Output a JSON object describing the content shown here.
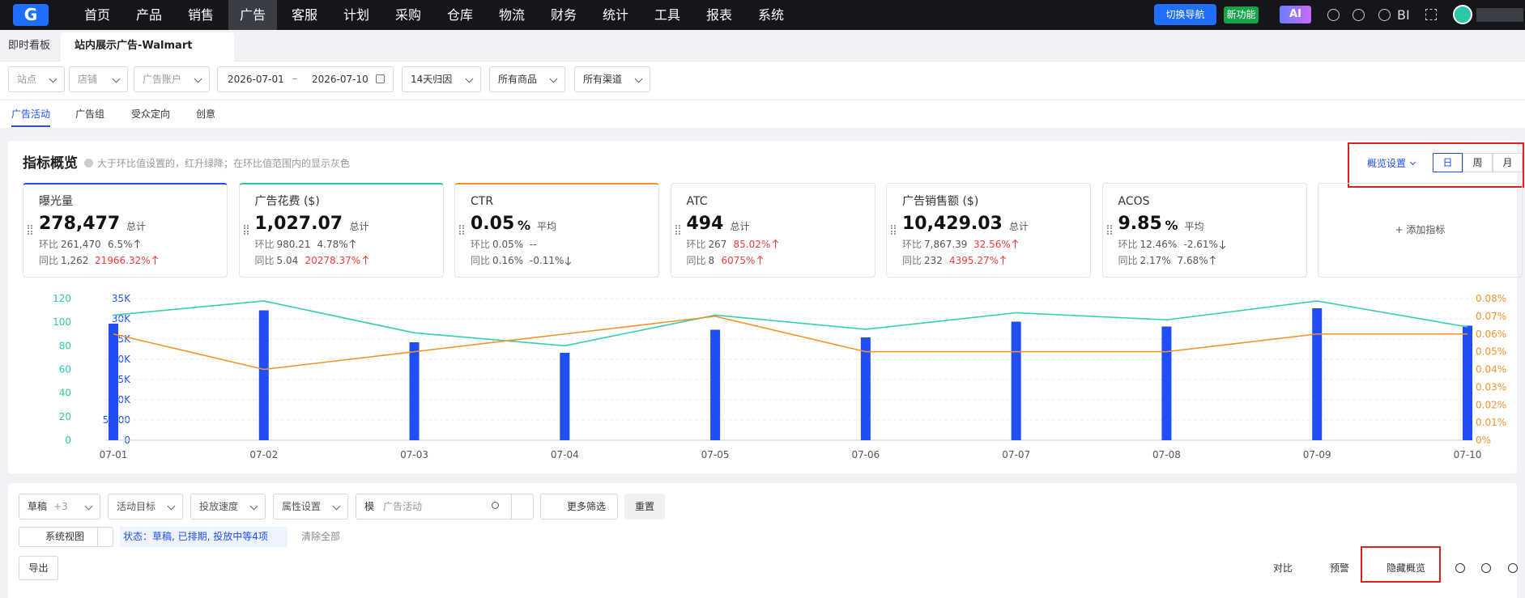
{
  "nav": {
    "items": [
      "首页",
      "产品",
      "销售",
      "广告",
      "客服",
      "计划",
      "采购",
      "仓库",
      "物流",
      "财务",
      "统计",
      "工具",
      "报表",
      "系统"
    ],
    "active": 3,
    "switch": "切换导航",
    "new_feature": "新功能",
    "ai": "AI",
    "bi": "BI"
  },
  "tabs": [
    "即时看板",
    "站内展示广告-Walmart"
  ],
  "filters": {
    "site": "站点",
    "shop": "店铺",
    "account": "广告账户",
    "start": "2026-07-01",
    "end": "2026-07-10",
    "attribution": "14天归因",
    "products": "所有商品",
    "channels": "所有渠道"
  },
  "subtabs": [
    "广告活动",
    "广告组",
    "受众定向",
    "创意"
  ],
  "overview": {
    "title": "指标概览",
    "hint": "大于环比值设置的，红升绿降；在环比值范围内的显示灰色",
    "settings": "概览设置",
    "periods": [
      "日",
      "周",
      "月"
    ],
    "add": "+ 添加指标",
    "metrics": [
      {
        "name": "曝光量",
        "value": "278,477",
        "agg": "总计",
        "accent": "#1f4ef5",
        "rows": [
          {
            "label": "环比",
            "value": "261,470",
            "change": "6.5%",
            "trend": "up",
            "alert": false
          },
          {
            "label": "同比",
            "value": "1,262",
            "change": "21966.32%",
            "trend": "up",
            "alert": true
          }
        ]
      },
      {
        "name": "广告花费 ($)",
        "value": "1,027.07",
        "agg": "总计",
        "accent": "#2ec7a6",
        "rows": [
          {
            "label": "环比",
            "value": "980.21",
            "change": "4.78%",
            "trend": "up",
            "alert": false
          },
          {
            "label": "同比",
            "value": "5.04",
            "change": "20278.37%",
            "trend": "up",
            "alert": true
          }
        ]
      },
      {
        "name": "CTR",
        "value": "0.05",
        "unit": "%",
        "agg": "平均",
        "accent": "#f5922a",
        "rows": [
          {
            "label": "环比",
            "value": "0.05%",
            "change": "--",
            "alert": false
          },
          {
            "label": "同比",
            "value": "0.16%",
            "change": "-0.11%",
            "trend": "down",
            "alert": false
          }
        ]
      },
      {
        "name": "ATC",
        "value": "494",
        "agg": "总计",
        "rows": [
          {
            "label": "环比",
            "value": "267",
            "change": "85.02%",
            "trend": "up",
            "alert": true
          },
          {
            "label": "同比",
            "value": "8",
            "change": "6075%",
            "trend": "up",
            "alert": true
          }
        ]
      },
      {
        "name": "广告销售额 ($)",
        "value": "10,429.03",
        "agg": "总计",
        "rows": [
          {
            "label": "环比",
            "value": "7,867.39",
            "change": "32.56%",
            "trend": "up",
            "alert": true
          },
          {
            "label": "同比",
            "value": "232",
            "change": "4395.27%",
            "trend": "up",
            "alert": true
          }
        ]
      },
      {
        "name": "ACOS",
        "value": "9.85",
        "unit": "%",
        "agg": "平均",
        "rows": [
          {
            "label": "环比",
            "value": "12.46%",
            "change": "-2.61%",
            "trend": "down",
            "alert": false
          },
          {
            "label": "同比",
            "value": "2.17%",
            "change": "7.68%",
            "trend": "up",
            "alert": false
          }
        ]
      }
    ]
  },
  "chart": {
    "type": "bar-line",
    "categories": [
      "07-01",
      "07-02",
      "07-03",
      "07-04",
      "07-05",
      "07-06",
      "07-07",
      "07-08",
      "07-09",
      "07-10"
    ],
    "ylim": [
      0,
      35000
    ],
    "yticks": [
      0,
      {
        "value": 5000,
        "label": "5,000"
      },
      {
        "value": 10000,
        "label": "10K"
      },
      {
        "value": 15000,
        "label": "15K"
      },
      {
        "value": 20000,
        "label": "20K"
      },
      {
        "value": 25000,
        "label": "25K"
      },
      {
        "value": 30000,
        "label": "30K"
      },
      {
        "value": 35000,
        "label": "35K"
      }
    ],
    "y2lim": [
      0,
      120
    ],
    "y2ticks": [
      0,
      20,
      40,
      60,
      80,
      100,
      120
    ],
    "y3lim": [
      0,
      0.08
    ],
    "y3ticks": [
      {
        "value": 0,
        "label": "0%"
      },
      {
        "value": 0.01,
        "label": "0.01%"
      },
      {
        "value": 0.02,
        "label": "0.02%"
      },
      {
        "value": 0.03,
        "label": "0.03%"
      },
      {
        "value": 0.04,
        "label": "0.04%"
      },
      {
        "value": 0.05,
        "label": "0.05%"
      },
      {
        "value": 0.06,
        "label": "0.06%"
      },
      {
        "value": 0.07,
        "label": "0.07%"
      },
      {
        "value": 0.08,
        "label": "0.08%"
      }
    ],
    "grid": true,
    "series": [
      {
        "kind": "bar",
        "axis": "y",
        "color": "#1f4ef5",
        "values": [
          28800,
          32100,
          24200,
          21600,
          27300,
          25400,
          29300,
          28100,
          32600,
          28300
        ]
      },
      {
        "kind": "line",
        "axis": "y2",
        "color": "#36cfae",
        "values": [
          106,
          118,
          91,
          80,
          106,
          94,
          108,
          102,
          118,
          96
        ]
      },
      {
        "kind": "line",
        "axis": "y3",
        "color": "#f5922a",
        "values": [
          0.06,
          0.04,
          0.05,
          0.06,
          0.07,
          0.05,
          0.05,
          0.05,
          0.06,
          0.06
        ]
      }
    ]
  },
  "list": {
    "status": "草稿",
    "status_more": "+3",
    "goal": "活动目标",
    "pace": "投放速度",
    "attrs": "属性设置",
    "match": "模",
    "search": "广告活动",
    "more_filters": "更多筛选",
    "reset": "重置",
    "view": "系统视图",
    "tag": "状态：草稿, 已排期, 投放中等4项",
    "clear": "清除全部",
    "export": "导出",
    "compare": "对比",
    "warning": "预警",
    "hide": "隐藏概览"
  }
}
